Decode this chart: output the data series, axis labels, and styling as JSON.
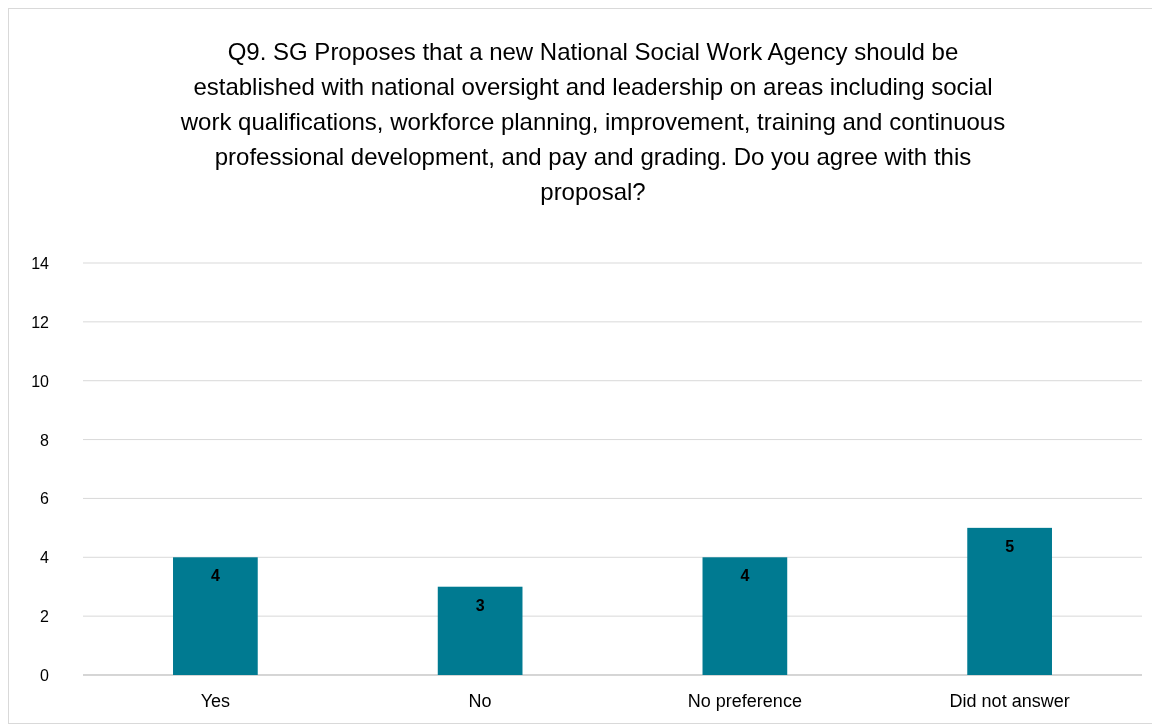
{
  "chart_data": {
    "type": "bar",
    "title": "Q9. SG Proposes that a new National Social Work Agency should be established with national oversight and leadership on areas including social work qualifications, workforce planning, improvement, training and continuous professional development, and pay and grading. Do you agree with this proposal?",
    "categories": [
      "Yes",
      "No",
      "No preference",
      "Did not answer"
    ],
    "values": [
      4,
      3,
      4,
      5
    ],
    "color": "#007a91",
    "ylim": [
      0,
      14
    ],
    "yticks": [
      0,
      2,
      4,
      6,
      8,
      10,
      12,
      14
    ],
    "grid": "y",
    "data_labels": true
  }
}
